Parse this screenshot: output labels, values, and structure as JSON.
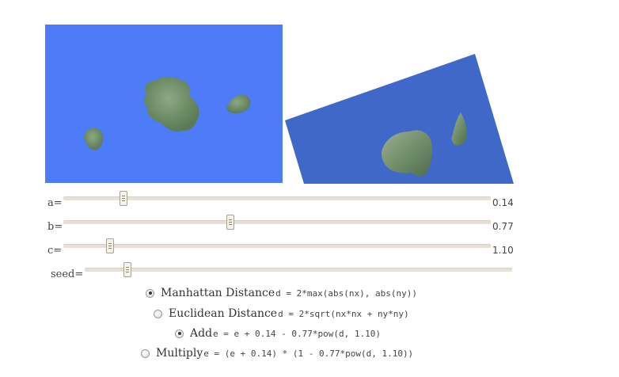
{
  "sliders": [
    {
      "id": "a",
      "label": "a=",
      "value": "0.14",
      "fraction": 0.14
    },
    {
      "id": "b",
      "label": "b=",
      "value": "0.77",
      "fraction": 0.39
    },
    {
      "id": "c",
      "label": "c=",
      "value": "1.10",
      "fraction": 0.11
    },
    {
      "id": "seed",
      "label": "seed=",
      "value": "",
      "fraction": 0.1
    }
  ],
  "distance_options": [
    {
      "name": "Manhattan Distance",
      "formula": "d = 2*max(abs(nx), abs(ny))",
      "checked": true
    },
    {
      "name": "Euclidean Distance",
      "formula": "d = 2*sqrt(nx*nx + ny*ny)",
      "checked": false
    }
  ],
  "combine_options": [
    {
      "name": "Add",
      "formula": "e = e + 0.14 - 0.77*pow(d, 1.10)",
      "checked": true
    },
    {
      "name": "Multiply",
      "formula": "e = (e + 0.14) * (1 - 0.77*pow(d, 1.10))",
      "checked": false
    }
  ],
  "colors": {
    "water_2d": "#4e7bf7",
    "water_3d": "#4068c9",
    "land": "#6f8f67"
  }
}
